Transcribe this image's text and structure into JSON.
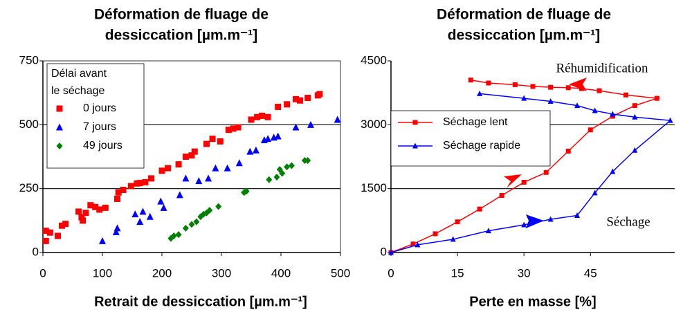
{
  "chart_data": [
    {
      "type": "scatter",
      "title": [
        "Déformation de fluage de",
        "dessiccation [µm.m⁻¹]"
      ],
      "x_label": "Retrait de dessiccation [µm.m⁻¹]",
      "legend_title": [
        "Délai avant",
        "le séchage"
      ],
      "legend": "upper left",
      "grid": true,
      "xlim": [
        0,
        500
      ],
      "xticks": [
        0,
        100,
        200,
        300,
        400,
        500
      ],
      "ylim": [
        0,
        750
      ],
      "yticks": [
        0,
        250,
        500,
        750
      ],
      "series": [
        {
          "name": "0 jours",
          "color": "#ff0000",
          "marker": "square",
          "x": [
            5,
            5,
            12,
            25,
            32,
            38,
            60,
            65,
            67,
            72,
            80,
            88,
            95,
            105,
            125,
            127,
            135,
            148,
            158,
            163,
            172,
            182,
            200,
            210,
            228,
            240,
            250,
            255,
            275,
            285,
            298,
            312,
            320,
            328,
            350,
            360,
            368,
            378,
            395,
            410,
            425,
            432,
            445,
            462,
            465
          ],
          "values": [
            45,
            85,
            78,
            65,
            105,
            112,
            160,
            138,
            125,
            155,
            185,
            178,
            168,
            175,
            210,
            235,
            245,
            260,
            270,
            272,
            275,
            290,
            320,
            330,
            345,
            375,
            380,
            395,
            425,
            445,
            435,
            480,
            485,
            490,
            520,
            530,
            535,
            530,
            570,
            580,
            600,
            595,
            605,
            615,
            620
          ]
        },
        {
          "name": "7 jours",
          "color": "#0000ff",
          "marker": "triangle",
          "x": [
            100,
            123,
            125,
            155,
            163,
            168,
            180,
            198,
            203,
            230,
            240,
            262,
            278,
            290,
            310,
            330,
            348,
            358,
            372,
            378,
            388,
            395,
            425,
            450,
            495
          ],
          "values": [
            45,
            80,
            95,
            150,
            120,
            160,
            140,
            200,
            175,
            225,
            290,
            280,
            290,
            330,
            330,
            350,
            395,
            400,
            440,
            445,
            450,
            455,
            490,
            500,
            520
          ]
        },
        {
          "name": "49 jours",
          "color": "#008000",
          "marker": "diamond",
          "x": [
            215,
            220,
            228,
            240,
            250,
            258,
            265,
            270,
            275,
            280,
            295,
            338,
            342,
            380,
            393,
            398,
            402,
            410,
            418,
            440,
            445
          ],
          "values": [
            55,
            65,
            70,
            95,
            110,
            120,
            140,
            150,
            155,
            165,
            180,
            235,
            240,
            285,
            295,
            325,
            310,
            335,
            340,
            360,
            360
          ]
        }
      ]
    },
    {
      "type": "line",
      "title": [
        "Déformation de fluage de",
        "dessiccation [µm.m⁻¹]"
      ],
      "x_label": "Perte en masse [%]",
      "legend": "center left",
      "grid": true,
      "xlim": [
        0,
        64
      ],
      "xticks": [
        0,
        15,
        30,
        45
      ],
      "ylim": [
        0,
        4500
      ],
      "yticks": [
        0,
        1500,
        3000,
        4500
      ],
      "annotations": [
        "Réhumidification",
        "Séchage"
      ],
      "series": [
        {
          "name": "Séchage lent",
          "color": "#ff0000",
          "marker": "square",
          "x": [
            0,
            5,
            10,
            15,
            20,
            25,
            30,
            35,
            40,
            45,
            50,
            55,
            60,
            53,
            47,
            43,
            40,
            36,
            32,
            28,
            22,
            18
          ],
          "values": [
            0,
            200,
            440,
            720,
            1020,
            1340,
            1650,
            1880,
            2380,
            2880,
            3200,
            3450,
            3620,
            3700,
            3800,
            3850,
            3870,
            3880,
            3900,
            3940,
            3980,
            4050
          ]
        },
        {
          "name": "Séchage rapide",
          "color": "#0000ff",
          "marker": "triangle",
          "x": [
            0,
            6,
            14,
            22,
            30,
            36,
            42,
            46,
            50,
            55,
            63,
            55,
            50,
            46,
            42,
            36,
            30,
            20
          ],
          "values": [
            0,
            180,
            310,
            510,
            650,
            780,
            870,
            1400,
            1900,
            2400,
            3100,
            3180,
            3250,
            3330,
            3450,
            3550,
            3620,
            3730
          ]
        }
      ]
    }
  ]
}
